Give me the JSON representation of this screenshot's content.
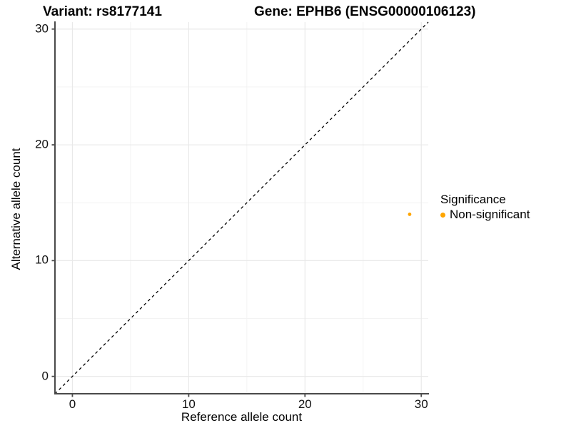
{
  "chart_data": {
    "type": "scatter",
    "title_left": "Variant: rs8177141",
    "title_right": "Gene: EPHB6 (ENSG00000106123)",
    "xlabel": "Reference allele count",
    "ylabel": "Alternative allele count",
    "xlim": [
      -1.5,
      30.6
    ],
    "ylim": [
      -1.5,
      30.6
    ],
    "x_ticks": [
      0,
      10,
      20,
      30
    ],
    "y_ticks": [
      0,
      10,
      20,
      30
    ],
    "x_minor_ticks": [
      5,
      15,
      25
    ],
    "y_minor_ticks": [
      5,
      15,
      25
    ],
    "grid": "on",
    "identity_line": {
      "show": true,
      "style": "dashed",
      "color": "#000000"
    },
    "series": [
      {
        "name": "Non-significant",
        "color": "#FFA500",
        "points": [
          {
            "x": 29,
            "y": 14
          }
        ]
      }
    ],
    "legend": {
      "title": "Significance",
      "position": "right",
      "items": [
        {
          "label": "Non-significant",
          "color": "#FFA500"
        }
      ]
    },
    "colors": {
      "axis_line": "#4a4a4a",
      "major_grid": "#e9e9e9",
      "minor_grid": "#f3f3f3",
      "point": "#FFA500"
    }
  }
}
